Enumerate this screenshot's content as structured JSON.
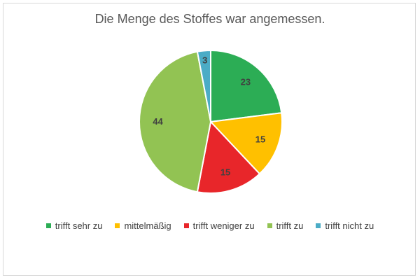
{
  "chart_data": {
    "type": "pie",
    "title": "Die Menge des Stoffes war angemessen.",
    "categories": [
      "trifft sehr zu",
      "mittelmäßig",
      "trifft weniger zu",
      "trifft zu",
      "trifft nicht zu"
    ],
    "values": [
      23,
      15,
      15,
      44,
      3
    ],
    "colors": [
      "#2cad55",
      "#ffc000",
      "#e8262a",
      "#92c353",
      "#4bacc6"
    ],
    "data_labels": [
      "23",
      "15",
      "15",
      "44",
      "3"
    ],
    "start_angle_deg": 0,
    "direction": "clockwise",
    "legend_position": "bottom"
  }
}
